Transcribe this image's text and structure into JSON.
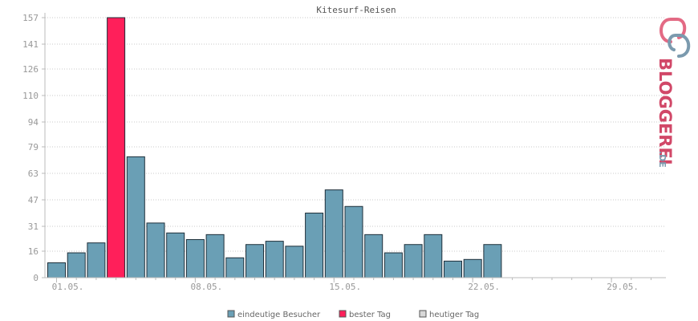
{
  "chart_data": {
    "type": "bar",
    "title": "Kitesurf-Reisen",
    "categories": [
      "01.05.",
      "02.05.",
      "03.05.",
      "04.05.",
      "05.05.",
      "06.05.",
      "07.05.",
      "08.05.",
      "09.05.",
      "10.05.",
      "11.05.",
      "12.05.",
      "13.05.",
      "14.05.",
      "15.05.",
      "16.05.",
      "17.05.",
      "18.05.",
      "19.05.",
      "20.05.",
      "21.05.",
      "22.05.",
      "23.05.",
      "24.05.",
      "25.05.",
      "26.05.",
      "27.05.",
      "28.05.",
      "29.05.",
      "30.05.",
      "31.05."
    ],
    "x_tick_labels": [
      "01.05.",
      "08.05.",
      "15.05.",
      "22.05.",
      "29.05."
    ],
    "y_ticks": [
      0,
      16,
      31,
      47,
      63,
      79,
      94,
      110,
      126,
      141,
      157
    ],
    "ylim": [
      0,
      157
    ],
    "grid": true,
    "series": [
      {
        "name": "eindeutige Besucher",
        "color": "#6a9fb5",
        "values": [
          9,
          15,
          21,
          157,
          73,
          33,
          27,
          23,
          26,
          12,
          20,
          22,
          19,
          39,
          53,
          43,
          26,
          15,
          20,
          26,
          10,
          11,
          20,
          null,
          null,
          null,
          null,
          null,
          null,
          null,
          null
        ]
      }
    ],
    "best_day_index": 3,
    "colors": {
      "visitors": "#6a9fb5",
      "best_day": "#ff1f5a",
      "today": "#d8d8d8"
    },
    "legend": {
      "placement": "bottom",
      "items": [
        {
          "label": "eindeutige Besucher",
          "color": "#6a9fb5"
        },
        {
          "label": "bester Tag",
          "color": "#ff1f5a"
        },
        {
          "label": "heutiger Tag",
          "color": "#d8d8d8"
        }
      ]
    }
  },
  "logo": {
    "text_main": "BLOGGEREI",
    "text_suffix": ".DE"
  }
}
